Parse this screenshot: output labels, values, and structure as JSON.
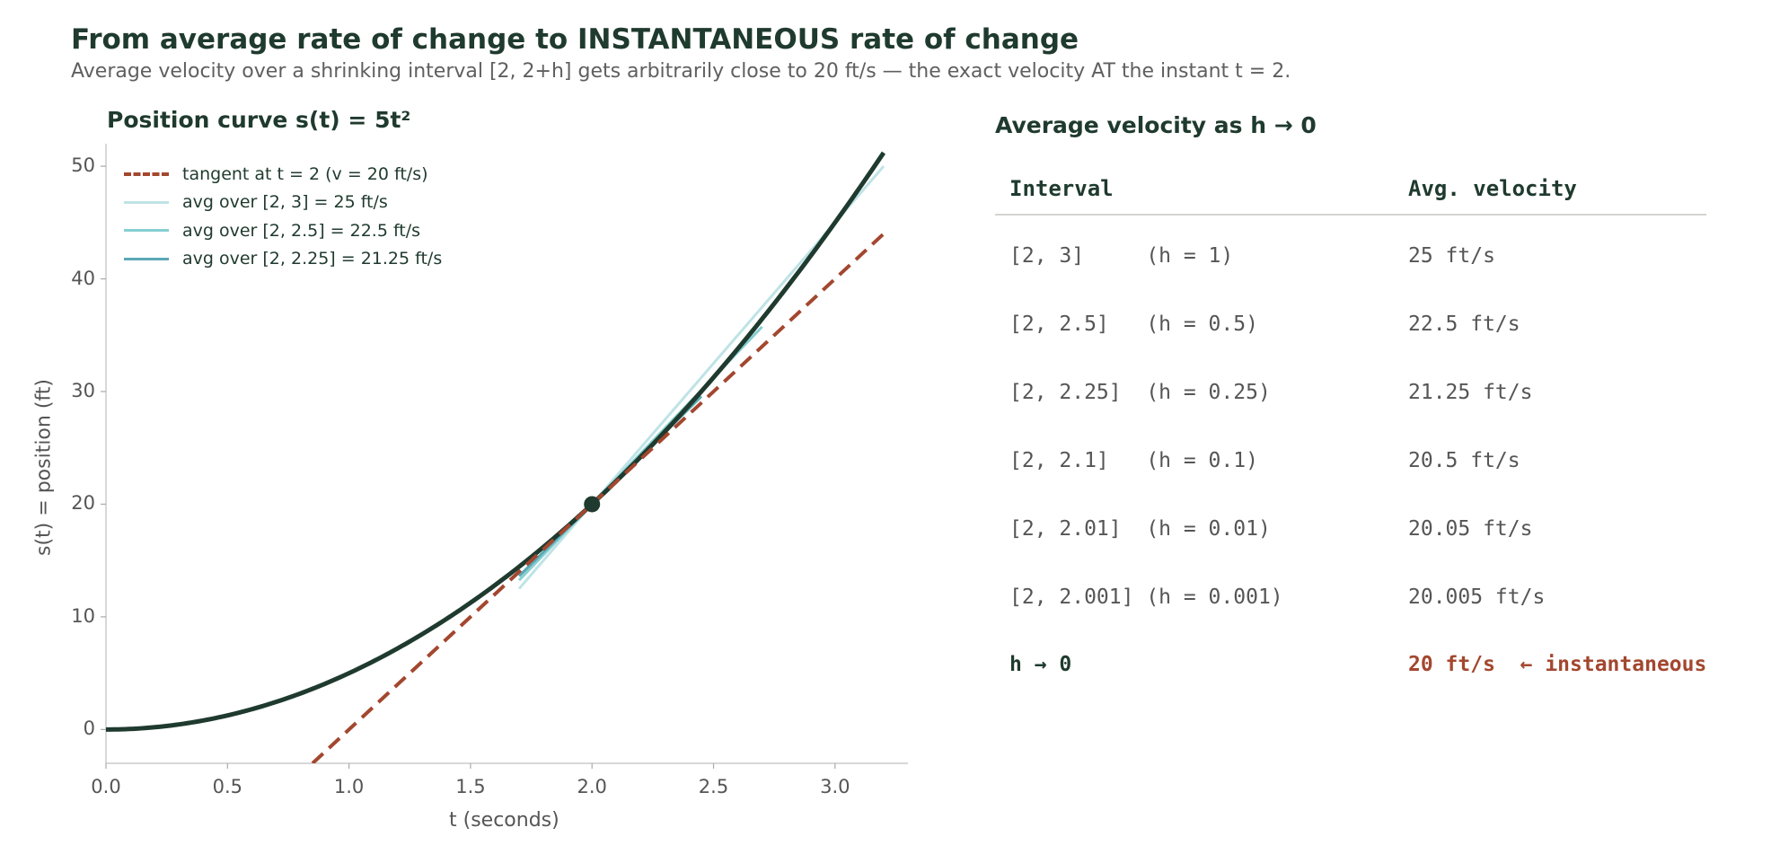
{
  "header": {
    "title": "From average rate of change to INSTANTANEOUS rate of change",
    "subtitle": "Average velocity over a shrinking interval [2, 2+h] gets arbitrarily close to 20 ft/s — the exact velocity AT the instant t = 2."
  },
  "chart_data": {
    "type": "line",
    "title": "Position curve  s(t) = 5t²",
    "xlabel": "t (seconds)",
    "ylabel": "s(t) = position (ft)",
    "xlim": [
      0,
      3.3
    ],
    "ylim": [
      -3,
      52
    ],
    "grid": false,
    "legend_position": "top-left",
    "xticks": [
      "0.0",
      "0.5",
      "1.0",
      "1.5",
      "2.0",
      "2.5",
      "3.0"
    ],
    "yticks": [
      "0",
      "10",
      "20",
      "30",
      "40",
      "50"
    ],
    "curve": {
      "function": "5t^2",
      "t_range": [
        0,
        3.2
      ],
      "color": "#1f3a2e"
    },
    "point": {
      "t": 2,
      "s": 20,
      "color": "#1f3a2e"
    },
    "series": [
      {
        "name": "tangent at t = 2  (v = 20 ft/s)",
        "slope": 20,
        "t_range": [
          0.85,
          3.2
        ],
        "color": "#a3472f",
        "style": "dashed"
      },
      {
        "name": "avg over [2, 3]  = 25 ft/s",
        "slope": 25,
        "t_range": [
          1.7,
          3.2
        ],
        "color": "#bfe3e6",
        "style": "solid"
      },
      {
        "name": "avg over [2, 2.5]  = 22.5 ft/s",
        "slope": 22.5,
        "t_range": [
          1.7,
          2.7
        ],
        "color": "#86cfd2",
        "style": "solid"
      },
      {
        "name": "avg over [2, 2.25]  = 21.25 ft/s",
        "slope": 21.25,
        "t_range": [
          1.7,
          2.45
        ],
        "color": "#5aa8b4",
        "style": "solid"
      }
    ]
  },
  "table": {
    "title": "Average velocity as h → 0",
    "headers": [
      "Interval",
      "Avg. velocity"
    ],
    "rows": [
      {
        "interval": "[2, 3]     (h = 1)",
        "velocity": "25 ft/s"
      },
      {
        "interval": "[2, 2.5]   (h = 0.5)",
        "velocity": "22.5 ft/s"
      },
      {
        "interval": "[2, 2.25]  (h = 0.25)",
        "velocity": "21.25 ft/s"
      },
      {
        "interval": "[2, 2.1]   (h = 0.1)",
        "velocity": "20.5 ft/s"
      },
      {
        "interval": "[2, 2.01]  (h = 0.01)",
        "velocity": "20.05 ft/s"
      },
      {
        "interval": "[2, 2.001] (h = 0.001)",
        "velocity": "20.005 ft/s"
      }
    ],
    "limit_row": {
      "interval": "h → 0",
      "velocity": "20 ft/s  ← instantaneous"
    }
  }
}
